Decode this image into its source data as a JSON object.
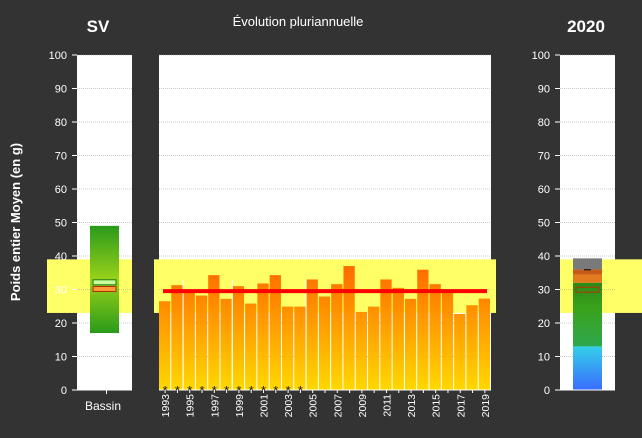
{
  "chart_data": {
    "type": "bar",
    "title": "Évolution pluriannuelle",
    "ylabel": "Poids entier Moyen (en g)",
    "ylim": [
      0,
      100
    ],
    "yticks": [
      0,
      10,
      20,
      30,
      40,
      50,
      60,
      70,
      80,
      90,
      100
    ],
    "reference_band": [
      23,
      39
    ],
    "colors": {
      "background": "#333333",
      "plot_background": "#ffffff",
      "band": "#ffff66",
      "bar_top": "#ff6a00",
      "bar_bottom": "#ffd800",
      "mean_line": "#ff0000",
      "text": "#ffffff"
    },
    "left_panel": {
      "header": "SV",
      "category": "Bassin",
      "box_bottom": 17,
      "box_top": 49,
      "marker_green": 32,
      "marker_orange": 30
    },
    "center_panel": {
      "years": [
        "1993",
        "1994",
        "1995",
        "1996",
        "1997",
        "1998",
        "1999",
        "2000",
        "2001",
        "2002",
        "2003",
        "2004",
        "2005",
        "2006",
        "2007",
        "2008",
        "2009",
        "2010",
        "2011",
        "2012",
        "2013",
        "2014",
        "2015",
        "2016",
        "2017",
        "2018",
        "2019"
      ],
      "xtick_labels": [
        "1993",
        "1995",
        "1997",
        "1999",
        "2001",
        "2003",
        "2005",
        "2007",
        "2009",
        "2011",
        "2013",
        "2015",
        "2017",
        "2019"
      ],
      "values": [
        26.5,
        31.3,
        29.2,
        28.2,
        34.3,
        27.2,
        31.0,
        25.8,
        31.8,
        34.3,
        24.9,
        24.9,
        33.0,
        27.9,
        31.6,
        37.0,
        23.3,
        24.9,
        33.0,
        30.5,
        27.2,
        35.9,
        31.6,
        29.9,
        22.7,
        25.3,
        27.3
      ],
      "mean_line_value": 29.5,
      "missing_marker": "*",
      "missing_marker_count": 12
    },
    "right_panel": {
      "header": "2020",
      "segments": [
        {
          "from": 0,
          "to": 13,
          "color": "#4aa0ff"
        },
        {
          "from": 13,
          "to": 32,
          "color": "#2a9a1a"
        },
        {
          "from": 32,
          "to": 34.5,
          "color": "#e27b1f"
        },
        {
          "from": 34.5,
          "to": 36,
          "color": "#c65a1a"
        },
        {
          "from": 36,
          "to": 39.3,
          "color": "#7a7a7a"
        }
      ],
      "marker": 29.8,
      "small_tick": 35.9
    }
  }
}
